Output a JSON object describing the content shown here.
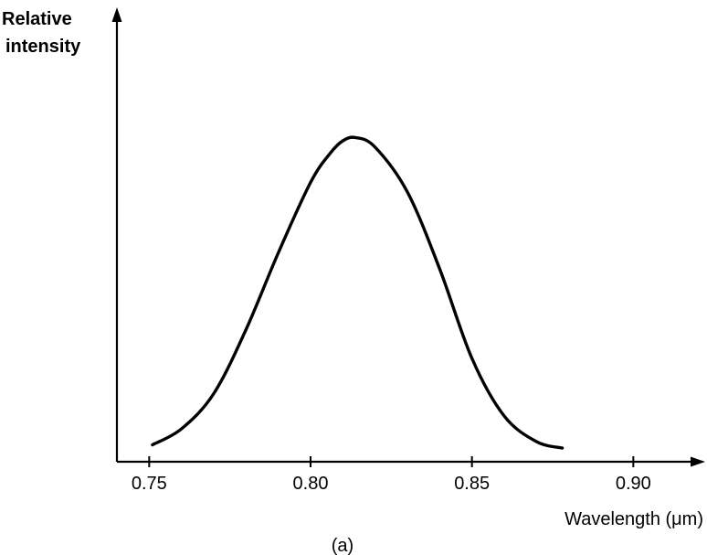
{
  "chart_data": {
    "type": "line",
    "title": "",
    "xlabel": "Wavelength (μm)",
    "ylabel_lines": [
      "Relative",
      "intensity"
    ],
    "caption": "(a)",
    "xlim": [
      0.74,
      0.93
    ],
    "ylim": [
      0,
      1
    ],
    "x_ticks": [
      0.75,
      0.8,
      0.85,
      0.9
    ],
    "x_tick_labels": [
      "0.75",
      "0.80",
      "0.85",
      "0.90"
    ],
    "grid": false,
    "legend": "none",
    "series": [
      {
        "x": [
          0.751,
          0.76,
          0.77,
          0.78,
          0.79,
          0.8,
          0.806,
          0.81,
          0.814,
          0.82,
          0.83,
          0.84,
          0.85,
          0.86,
          0.87,
          0.878
        ],
        "y": [
          0.01,
          0.06,
          0.17,
          0.37,
          0.61,
          0.83,
          0.92,
          0.96,
          0.97,
          0.94,
          0.8,
          0.56,
          0.28,
          0.1,
          0.02,
          0.0
        ]
      }
    ]
  }
}
